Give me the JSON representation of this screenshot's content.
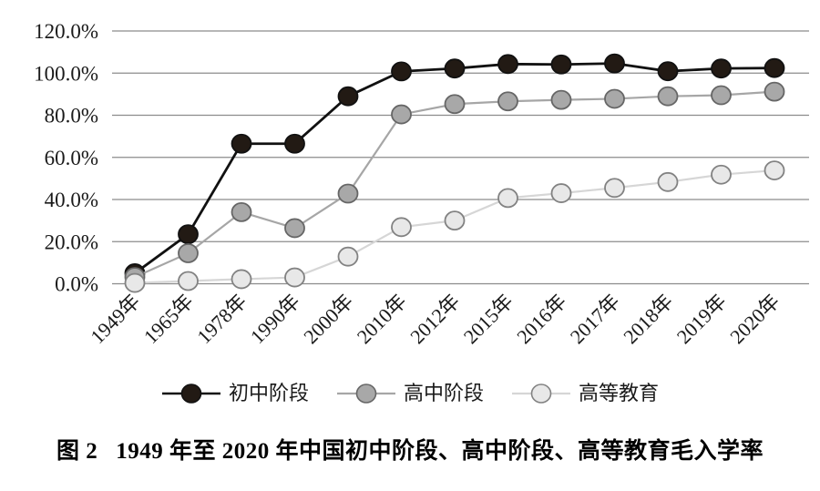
{
  "figure": {
    "caption_label": "图 2",
    "caption_text": "1949 年至 2020 年中国初中阶段、高中阶段、高等教育毛入学率"
  },
  "colors": {
    "background": "#ffffff",
    "gridline": "#8c8c8c",
    "axis_text": "#1a1a1a",
    "caption_text": "#000000",
    "series_junior": "#1a1a1a",
    "series_senior": "#a8a8a8",
    "series_higher": "#e8e8e8"
  },
  "chart_data": {
    "type": "line",
    "title": "",
    "xlabel": "",
    "ylabel": "",
    "categories": [
      "1949年",
      "1965年",
      "1978年",
      "1990年",
      "2000年",
      "2010年",
      "2012年",
      "2015年",
      "2016年",
      "2017年",
      "2018年",
      "2019年",
      "2020年"
    ],
    "series": [
      {
        "name": "初中阶段",
        "values": [
          5.0,
          23.5,
          66.5,
          66.5,
          89.0,
          100.8,
          102.2,
          104.3,
          104.1,
          104.6,
          100.9,
          102.2,
          102.4
        ],
        "line_color": "#111111",
        "marker_fill": "#221a14",
        "marker_stroke": "#111111"
      },
      {
        "name": "高中阶段",
        "values": [
          3.2,
          14.5,
          34.0,
          26.4,
          42.8,
          80.4,
          85.3,
          86.6,
          87.3,
          87.8,
          89.0,
          89.5,
          91.2
        ],
        "line_color": "#a6a6a6",
        "marker_fill": "#a8a8a8",
        "marker_stroke": "#666666"
      },
      {
        "name": "高等教育",
        "values": [
          0.4,
          1.3,
          2.2,
          3.0,
          12.9,
          26.9,
          30.0,
          40.7,
          43.0,
          45.5,
          48.3,
          51.8,
          53.8
        ],
        "line_color": "#d6d6d6",
        "marker_fill": "#e8e8e8",
        "marker_stroke": "#828282"
      }
    ],
    "ylim": [
      0,
      120
    ],
    "ytick_step": 20,
    "ytick_labels": [
      "0.0%",
      "20.0%",
      "40.0%",
      "60.0%",
      "80.0%",
      "100.0%",
      "120.0%"
    ],
    "grid": true,
    "legend_position": "bottom"
  }
}
